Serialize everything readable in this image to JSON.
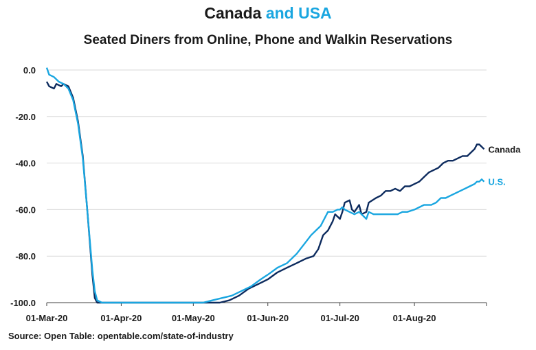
{
  "header": {
    "title_part1": "Canada",
    "title_part2": "and USA",
    "subtitle": "Seated Diners from Online, Phone and Walkin Reservations"
  },
  "footer": {
    "source": "Source: Open Table: opentable.com/state-of-industry"
  },
  "colors": {
    "canada": "#0d2b5e",
    "us": "#1aa6e0",
    "grid": "#d9d9d9",
    "axis": "#404040"
  },
  "chart_data": {
    "type": "line",
    "title": "Canada and USA",
    "subtitle": "Seated Diners from Online, Phone and Walkin Reservations",
    "xlabel": "",
    "ylabel": "",
    "ylim": [
      -100,
      0
    ],
    "xlim": [
      "2020-03-01",
      "2020-08-31"
    ],
    "yticks": [
      0,
      -20,
      -40,
      -60,
      -80,
      -100
    ],
    "ytick_labels": [
      "0.0",
      "-20.0",
      "-40.0",
      "-60.0",
      "-80.0",
      "-100.0"
    ],
    "xticks": [
      "2020-03-01",
      "2020-04-01",
      "2020-05-01",
      "2020-06-01",
      "2020-07-01",
      "2020-08-01"
    ],
    "xtick_labels": [
      "01-Mar-20",
      "01-Apr-20",
      "01-May-20",
      "01-Jun-20",
      "01-Jul-20",
      "01-Aug-20"
    ],
    "grid": true,
    "series": [
      {
        "name": "Canada",
        "color": "#0d2b5e",
        "points": [
          [
            "2020-03-01",
            -5
          ],
          [
            "2020-03-02",
            -7
          ],
          [
            "2020-03-04",
            -8
          ],
          [
            "2020-03-05",
            -6
          ],
          [
            "2020-03-07",
            -7
          ],
          [
            "2020-03-08",
            -6
          ],
          [
            "2020-03-10",
            -7
          ],
          [
            "2020-03-12",
            -12
          ],
          [
            "2020-03-14",
            -22
          ],
          [
            "2020-03-16",
            -37
          ],
          [
            "2020-03-18",
            -62
          ],
          [
            "2020-03-20",
            -88
          ],
          [
            "2020-03-21",
            -98
          ],
          [
            "2020-03-22",
            -100
          ],
          [
            "2020-04-01",
            -100
          ],
          [
            "2020-05-01",
            -100
          ],
          [
            "2020-05-12",
            -100
          ],
          [
            "2020-05-16",
            -99
          ],
          [
            "2020-05-20",
            -97
          ],
          [
            "2020-05-24",
            -94
          ],
          [
            "2020-05-28",
            -92
          ],
          [
            "2020-06-01",
            -90
          ],
          [
            "2020-06-05",
            -87
          ],
          [
            "2020-06-09",
            -85
          ],
          [
            "2020-06-13",
            -83
          ],
          [
            "2020-06-17",
            -81
          ],
          [
            "2020-06-20",
            -80
          ],
          [
            "2020-06-22",
            -77
          ],
          [
            "2020-06-24",
            -71
          ],
          [
            "2020-06-26",
            -69
          ],
          [
            "2020-06-28",
            -65
          ],
          [
            "2020-06-29",
            -62
          ],
          [
            "2020-06-30",
            -63
          ],
          [
            "2020-07-01",
            -64
          ],
          [
            "2020-07-02",
            -61
          ],
          [
            "2020-07-03",
            -57
          ],
          [
            "2020-07-05",
            -56
          ],
          [
            "2020-07-06",
            -60
          ],
          [
            "2020-07-07",
            -61
          ],
          [
            "2020-07-09",
            -58
          ],
          [
            "2020-07-10",
            -62
          ],
          [
            "2020-07-12",
            -61
          ],
          [
            "2020-07-13",
            -57
          ],
          [
            "2020-07-16",
            -55
          ],
          [
            "2020-07-18",
            -54
          ],
          [
            "2020-07-20",
            -52
          ],
          [
            "2020-07-22",
            -52
          ],
          [
            "2020-07-24",
            -51
          ],
          [
            "2020-07-26",
            -52
          ],
          [
            "2020-07-28",
            -50
          ],
          [
            "2020-07-30",
            -50
          ],
          [
            "2020-08-01",
            -49
          ],
          [
            "2020-08-03",
            -48
          ],
          [
            "2020-08-05",
            -46
          ],
          [
            "2020-08-07",
            -44
          ],
          [
            "2020-08-09",
            -43
          ],
          [
            "2020-08-11",
            -42
          ],
          [
            "2020-08-13",
            -40
          ],
          [
            "2020-08-15",
            -39
          ],
          [
            "2020-08-17",
            -39
          ],
          [
            "2020-08-19",
            -38
          ],
          [
            "2020-08-21",
            -37
          ],
          [
            "2020-08-23",
            -37
          ],
          [
            "2020-08-25",
            -35
          ],
          [
            "2020-08-26",
            -34
          ],
          [
            "2020-08-27",
            -32
          ],
          [
            "2020-08-28",
            -32
          ],
          [
            "2020-08-29",
            -33
          ],
          [
            "2020-08-30",
            -34
          ]
        ]
      },
      {
        "name": "U.S.",
        "color": "#1aa6e0",
        "points": [
          [
            "2020-03-01",
            1
          ],
          [
            "2020-03-02",
            -2
          ],
          [
            "2020-03-04",
            -3
          ],
          [
            "2020-03-06",
            -5
          ],
          [
            "2020-03-08",
            -6
          ],
          [
            "2020-03-10",
            -8
          ],
          [
            "2020-03-12",
            -13
          ],
          [
            "2020-03-14",
            -23
          ],
          [
            "2020-03-16",
            -38
          ],
          [
            "2020-03-18",
            -62
          ],
          [
            "2020-03-20",
            -86
          ],
          [
            "2020-03-21",
            -95
          ],
          [
            "2020-03-22",
            -99
          ],
          [
            "2020-03-24",
            -100
          ],
          [
            "2020-04-01",
            -100
          ],
          [
            "2020-05-01",
            -100
          ],
          [
            "2020-05-05",
            -100
          ],
          [
            "2020-05-09",
            -99
          ],
          [
            "2020-05-13",
            -98
          ],
          [
            "2020-05-17",
            -97
          ],
          [
            "2020-05-21",
            -95
          ],
          [
            "2020-05-25",
            -93
          ],
          [
            "2020-05-29",
            -90
          ],
          [
            "2020-06-01",
            -88
          ],
          [
            "2020-06-05",
            -85
          ],
          [
            "2020-06-09",
            -83
          ],
          [
            "2020-06-13",
            -79
          ],
          [
            "2020-06-16",
            -75
          ],
          [
            "2020-06-19",
            -71
          ],
          [
            "2020-06-21",
            -69
          ],
          [
            "2020-06-23",
            -67
          ],
          [
            "2020-06-25",
            -63
          ],
          [
            "2020-06-26",
            -61
          ],
          [
            "2020-06-28",
            -61
          ],
          [
            "2020-06-30",
            -60
          ],
          [
            "2020-07-01",
            -60
          ],
          [
            "2020-07-02",
            -59
          ],
          [
            "2020-07-03",
            -60
          ],
          [
            "2020-07-05",
            -61
          ],
          [
            "2020-07-07",
            -62
          ],
          [
            "2020-07-09",
            -61
          ],
          [
            "2020-07-11",
            -63
          ],
          [
            "2020-07-12",
            -64
          ],
          [
            "2020-07-13",
            -61
          ],
          [
            "2020-07-15",
            -62
          ],
          [
            "2020-07-17",
            -62
          ],
          [
            "2020-07-19",
            -62
          ],
          [
            "2020-07-21",
            -62
          ],
          [
            "2020-07-23",
            -62
          ],
          [
            "2020-07-25",
            -62
          ],
          [
            "2020-07-27",
            -61
          ],
          [
            "2020-07-29",
            -61
          ],
          [
            "2020-08-01",
            -60
          ],
          [
            "2020-08-03",
            -59
          ],
          [
            "2020-08-05",
            -58
          ],
          [
            "2020-08-08",
            -58
          ],
          [
            "2020-08-10",
            -57
          ],
          [
            "2020-08-12",
            -55
          ],
          [
            "2020-08-14",
            -55
          ],
          [
            "2020-08-16",
            -54
          ],
          [
            "2020-08-18",
            -53
          ],
          [
            "2020-08-20",
            -52
          ],
          [
            "2020-08-22",
            -51
          ],
          [
            "2020-08-24",
            -50
          ],
          [
            "2020-08-26",
            -49
          ],
          [
            "2020-08-27",
            -48
          ],
          [
            "2020-08-28",
            -48
          ],
          [
            "2020-08-29",
            -47
          ],
          [
            "2020-08-30",
            -48
          ]
        ]
      }
    ]
  }
}
